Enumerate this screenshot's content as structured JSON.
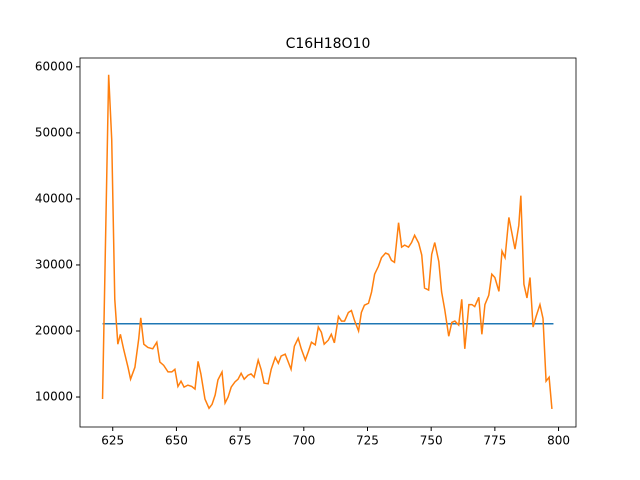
{
  "chart_data": {
    "type": "line",
    "title": "C16H18O10",
    "xlim": [
      612.15,
      806.85
    ],
    "ylim": [
      5460,
      61340
    ],
    "xticks": [
      625,
      650,
      675,
      700,
      725,
      750,
      775,
      800
    ],
    "yticks": [
      10000,
      20000,
      30000,
      40000,
      50000,
      60000
    ],
    "series": [
      {
        "color": "#1f77b4",
        "x": [
          621,
          798
        ],
        "values": [
          21100,
          21100
        ]
      },
      {
        "color": "#ff7f0e",
        "x": [
          621,
          623.4,
          624.6,
          625.8,
          627,
          628,
          629.3,
          631,
          632,
          633.7,
          635.2,
          636,
          637.2,
          638.8,
          640.7,
          642.3,
          643.5,
          645,
          646.7,
          648.2,
          649.4,
          650.6,
          651.8,
          653,
          654.5,
          656,
          657.3,
          658.5,
          659.6,
          661.2,
          662.8,
          664,
          665.2,
          666.3,
          667.9,
          669.1,
          670.3,
          671.5,
          673,
          674.2,
          675.4,
          676.6,
          678.1,
          679.3,
          680.5,
          682.1,
          683.3,
          684.4,
          686,
          687.2,
          688.8,
          690,
          691.1,
          692.7,
          693.9,
          695,
          696.3,
          697.8,
          699,
          700.6,
          701.8,
          703,
          704.5,
          705.7,
          706.9,
          708,
          709.6,
          710.8,
          712,
          713.6,
          714.8,
          716,
          717.5,
          718.7,
          719.9,
          721.5,
          722.6,
          723.8,
          725.4,
          726.6,
          727.8,
          729.3,
          730.5,
          732.1,
          733.3,
          734.4,
          735.6,
          737.2,
          738.4,
          739.6,
          741.1,
          742.3,
          743.5,
          745.1,
          746.3,
          747.4,
          749,
          750.2,
          751.4,
          753,
          754.1,
          755.3,
          756.9,
          758.1,
          759.3,
          760.8,
          762,
          763.2,
          764.8,
          766,
          767.1,
          768.7,
          769.9,
          771.1,
          772.6,
          773.8,
          775,
          776.6,
          777.8,
          779,
          780.5,
          781.7,
          782.9,
          784.4,
          785.2,
          786.4,
          787.6,
          788.8,
          790,
          791.1,
          792.7,
          793.9,
          795.1,
          796.3,
          797.4
        ],
        "values": [
          9700,
          58800,
          49000,
          24800,
          18000,
          19500,
          17200,
          14500,
          12700,
          14500,
          18800,
          22000,
          18000,
          17500,
          17300,
          18300,
          15300,
          14800,
          13800,
          13800,
          14200,
          11600,
          12400,
          11500,
          11800,
          11600,
          11200,
          15400,
          13500,
          9700,
          8300,
          8900,
          10300,
          12600,
          13800,
          9100,
          10000,
          11500,
          12300,
          12700,
          13600,
          12700,
          13300,
          13500,
          13000,
          15600,
          14100,
          12100,
          12000,
          14200,
          16000,
          15100,
          16200,
          16500,
          15300,
          14200,
          17700,
          18900,
          17300,
          15600,
          16900,
          18300,
          17900,
          20600,
          19800,
          18000,
          18600,
          19500,
          18200,
          22200,
          21500,
          21500,
          22800,
          23100,
          21600,
          20000,
          22800,
          23900,
          24200,
          25900,
          28600,
          29800,
          31100,
          31800,
          31600,
          30700,
          30400,
          36400,
          32700,
          33000,
          32700,
          33400,
          34500,
          33300,
          31500,
          26500,
          26200,
          31600,
          33400,
          30500,
          25900,
          23300,
          19200,
          21300,
          21500,
          20900,
          24800,
          17300,
          24000,
          24000,
          23700,
          25100,
          19500,
          24000,
          25400,
          28600,
          28100,
          26000,
          32100,
          31100,
          37200,
          34800,
          32400,
          36000,
          40500,
          27100,
          25000,
          28100,
          20600,
          22100,
          24000,
          21900,
          12400,
          13000,
          8200
        ]
      }
    ]
  }
}
